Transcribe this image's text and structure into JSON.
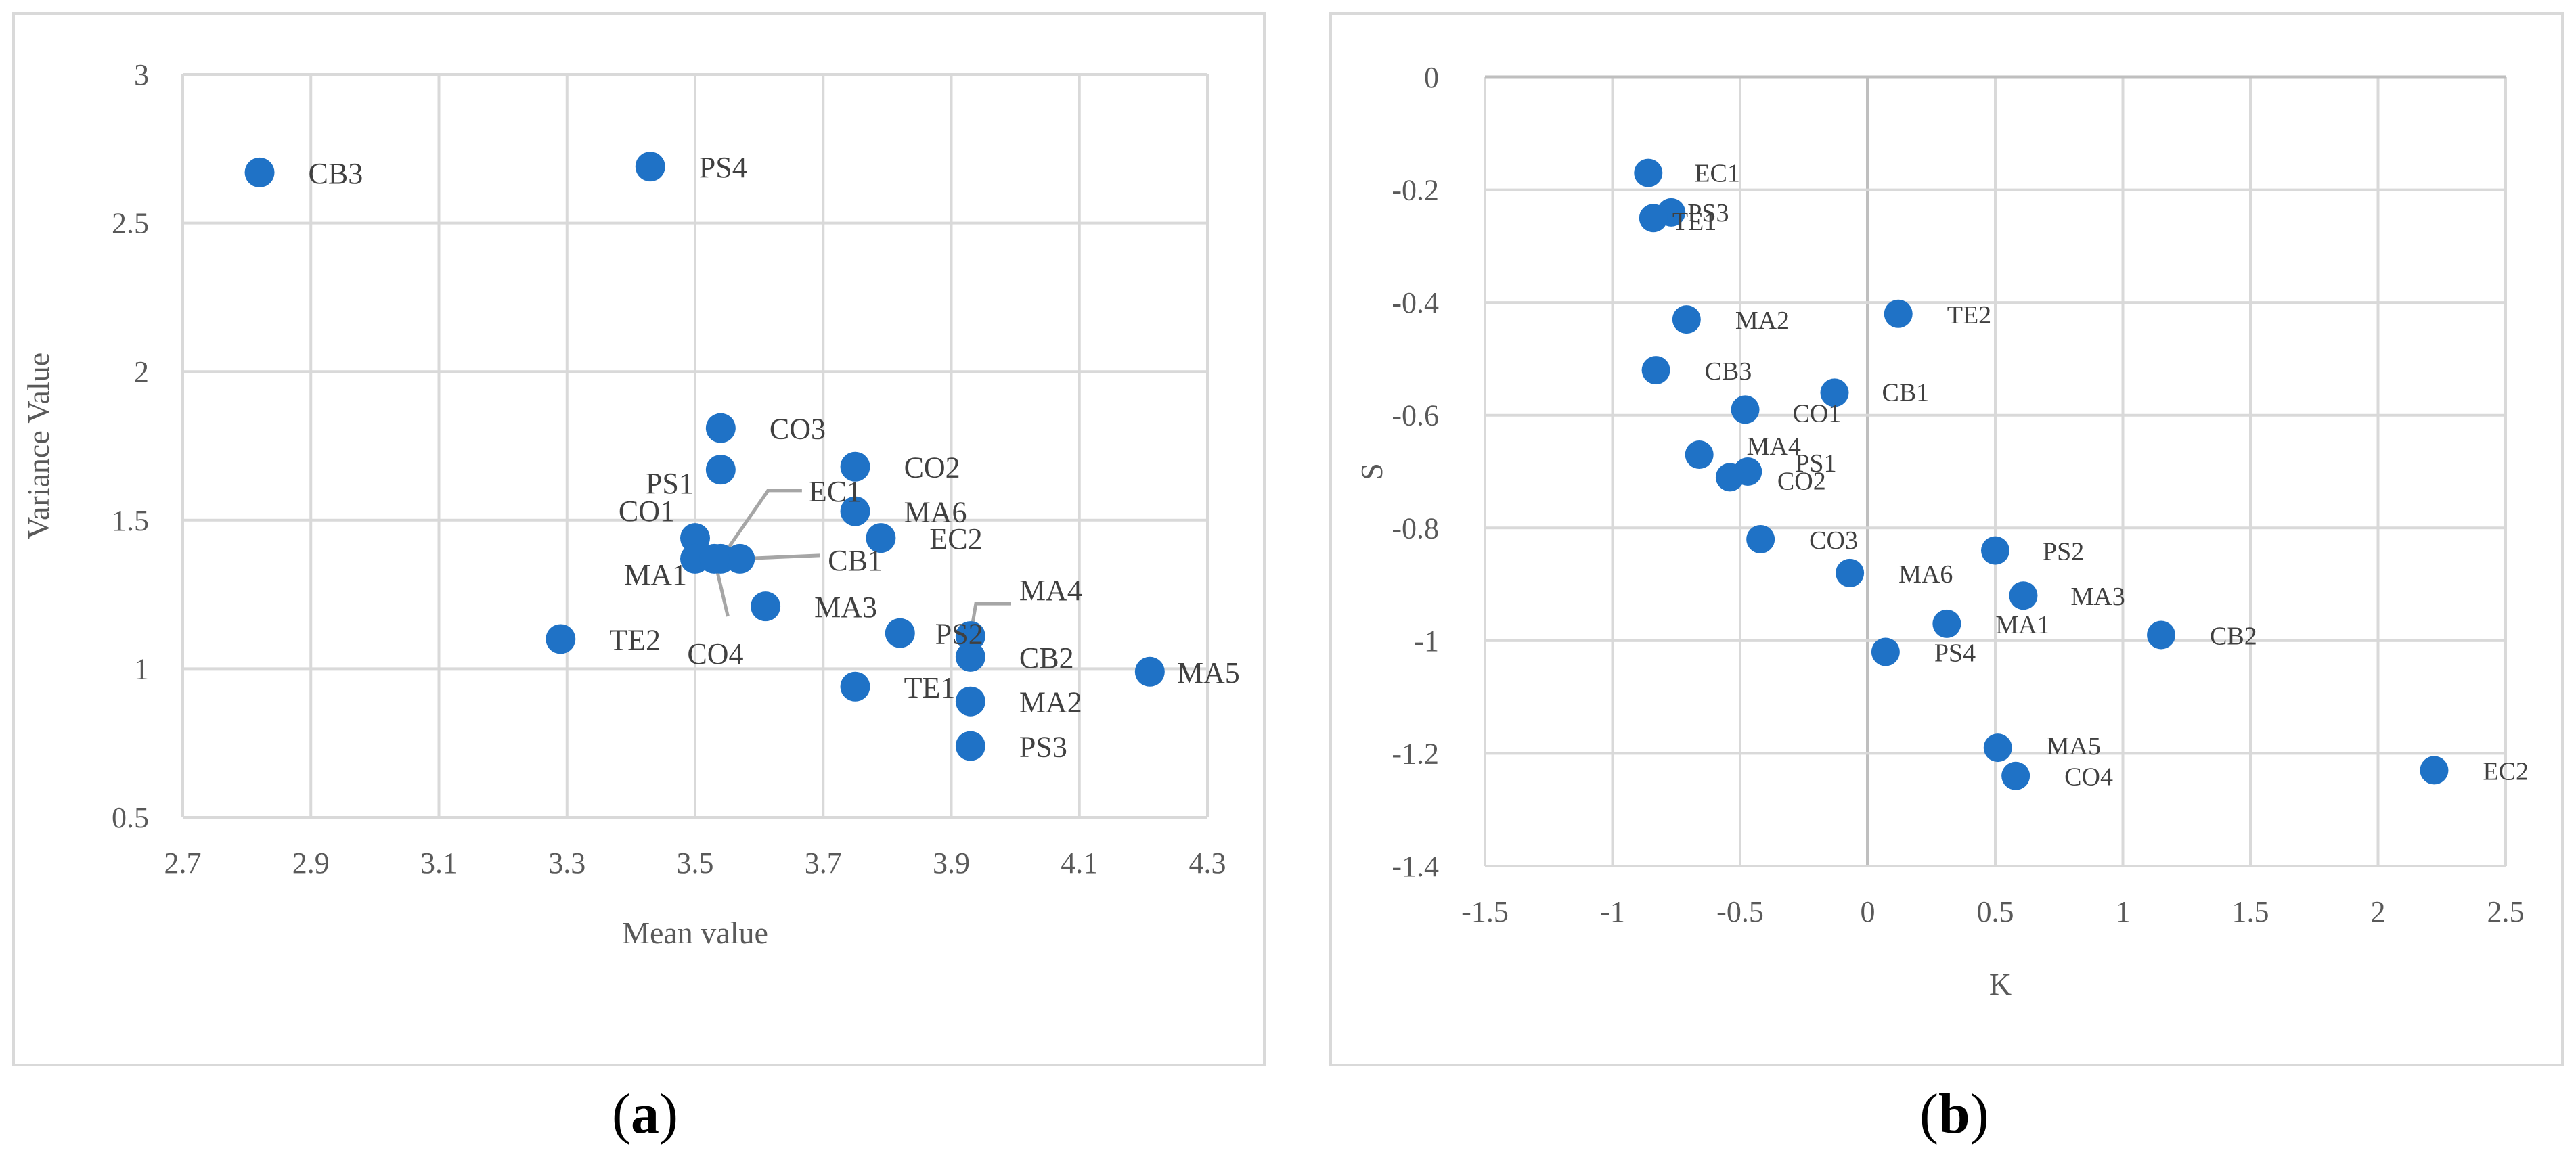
{
  "chart_data": [
    {
      "id": "a",
      "type": "scatter",
      "caption_letter": "a",
      "caption_open": "(",
      "caption_close": ")",
      "xlabel": "Mean value",
      "ylabel": "Variance Value",
      "xlim": [
        2.7,
        4.3
      ],
      "ylim": [
        0.5,
        3
      ],
      "xticks": [
        "2.7",
        "2.9",
        "3.1",
        "3.3",
        "3.5",
        "3.7",
        "3.9",
        "4.1",
        "4.3"
      ],
      "yticks": [
        "0.5",
        "1",
        "1.5",
        "2",
        "2.5",
        "3"
      ],
      "points": [
        {
          "label": "CB3",
          "x": 2.82,
          "y": 2.67
        },
        {
          "label": "PS4",
          "x": 3.43,
          "y": 2.69
        },
        {
          "label": "TE2",
          "x": 3.29,
          "y": 1.1
        },
        {
          "label": "PS1",
          "x": 3.54,
          "y": 1.67
        },
        {
          "label": "CO3",
          "x": 3.54,
          "y": 1.81
        },
        {
          "label": "CO1",
          "x": 3.5,
          "y": 1.44
        },
        {
          "label": "MA1",
          "x": 3.5,
          "y": 1.37
        },
        {
          "label": "EC1",
          "x": 3.54,
          "y": 1.37
        },
        {
          "label": "CB1",
          "x": 3.57,
          "y": 1.37
        },
        {
          "label": "CO4",
          "x": 3.53,
          "y": 1.37
        },
        {
          "label": "MA3",
          "x": 3.61,
          "y": 1.21
        },
        {
          "label": "CO2",
          "x": 3.75,
          "y": 1.68
        },
        {
          "label": "MA6",
          "x": 3.75,
          "y": 1.53
        },
        {
          "label": "EC2",
          "x": 3.79,
          "y": 1.44
        },
        {
          "label": "PS2",
          "x": 3.82,
          "y": 1.12
        },
        {
          "label": "TE1",
          "x": 3.75,
          "y": 0.94
        },
        {
          "label": "MA4",
          "x": 3.93,
          "y": 1.11
        },
        {
          "label": "CB2",
          "x": 3.93,
          "y": 1.04
        },
        {
          "label": "MA2",
          "x": 3.93,
          "y": 0.89
        },
        {
          "label": "PS3",
          "x": 3.93,
          "y": 0.74
        },
        {
          "label": "MA5",
          "x": 4.21,
          "y": 0.99
        }
      ]
    },
    {
      "id": "b",
      "type": "scatter",
      "caption_letter": "b",
      "caption_open": "(",
      "caption_close": ")",
      "xlabel": "K",
      "ylabel": "S",
      "xlim": [
        -1.5,
        2.5
      ],
      "ylim": [
        -1.4,
        0
      ],
      "xticks": [
        "-1.5",
        "-1",
        "-0.5",
        "0",
        "0.5",
        "1",
        "1.5",
        "2",
        "2.5"
      ],
      "yticks": [
        "0",
        "-0.2",
        "-0.4",
        "-0.6",
        "-0.8",
        "-1",
        "-1.2",
        "-1.4"
      ],
      "points": [
        {
          "label": "EC1",
          "x": -0.86,
          "y": -0.17
        },
        {
          "label": "PS3",
          "x": -0.77,
          "y": -0.24
        },
        {
          "label": "TE1",
          "x": -0.84,
          "y": -0.25
        },
        {
          "label": "MA2",
          "x": -0.71,
          "y": -0.43
        },
        {
          "label": "TE2",
          "x": 0.12,
          "y": -0.42
        },
        {
          "label": "CB3",
          "x": -0.83,
          "y": -0.52
        },
        {
          "label": "CB1",
          "x": -0.13,
          "y": -0.56
        },
        {
          "label": "CO1",
          "x": -0.48,
          "y": -0.59
        },
        {
          "label": "MA4",
          "x": -0.66,
          "y": -0.67
        },
        {
          "label": "PS1",
          "x": -0.47,
          "y": -0.7
        },
        {
          "label": "CO2",
          "x": -0.54,
          "y": -0.71
        },
        {
          "label": "CO3",
          "x": -0.42,
          "y": -0.82
        },
        {
          "label": "MA6",
          "x": -0.07,
          "y": -0.88
        },
        {
          "label": "PS2",
          "x": 0.5,
          "y": -0.84
        },
        {
          "label": "MA3",
          "x": 0.61,
          "y": -0.92
        },
        {
          "label": "MA1",
          "x": 0.31,
          "y": -0.97
        },
        {
          "label": "PS4",
          "x": 0.07,
          "y": -1.02
        },
        {
          "label": "CB2",
          "x": 1.15,
          "y": -0.99
        },
        {
          "label": "MA5",
          "x": 0.51,
          "y": -1.19
        },
        {
          "label": "CO4",
          "x": 0.58,
          "y": -1.24
        },
        {
          "label": "EC2",
          "x": 2.22,
          "y": -1.23
        }
      ]
    }
  ]
}
